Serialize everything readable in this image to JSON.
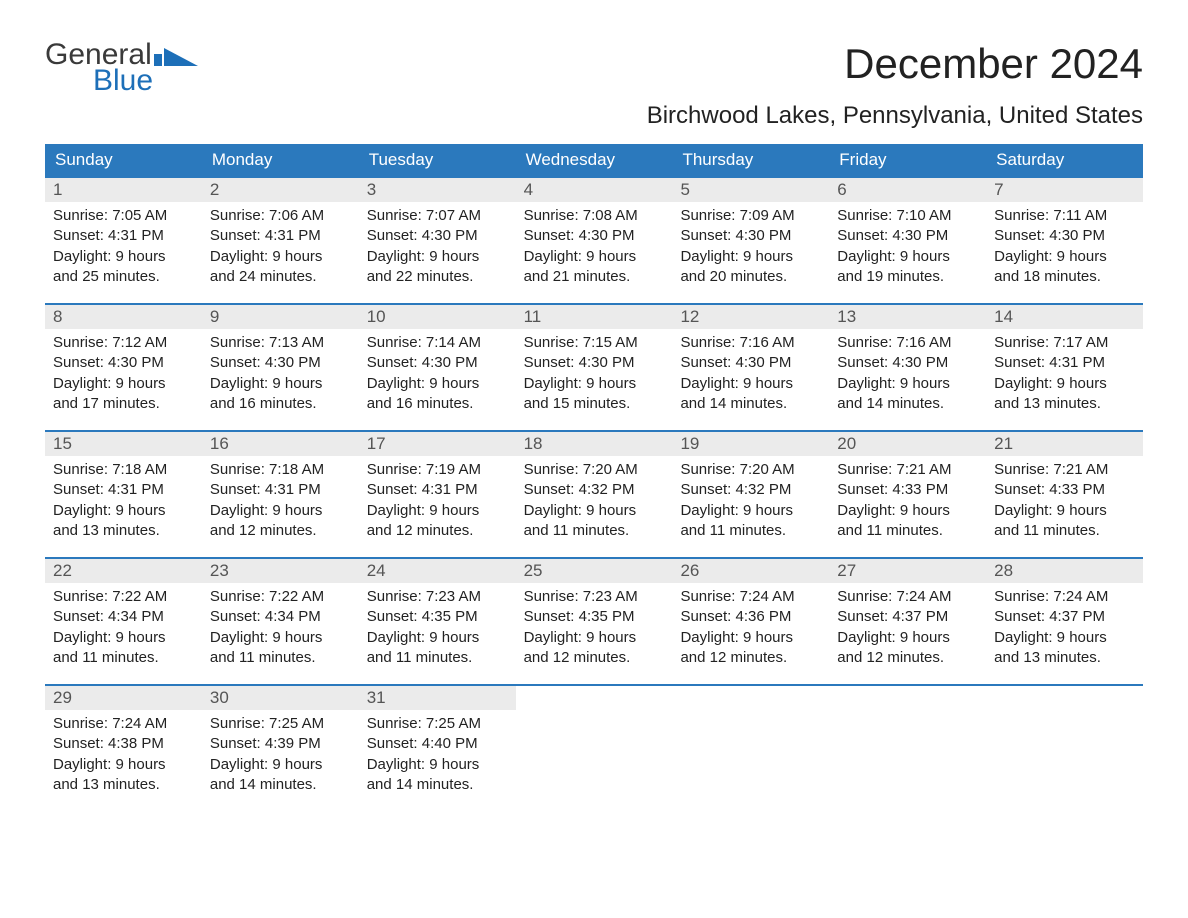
{
  "logo": {
    "top": "General",
    "bottom": "Blue"
  },
  "title": "December 2024",
  "location": "Birchwood Lakes, Pennsylvania, United States",
  "colors": {
    "header_bg": "#2b79bd",
    "header_text": "#ffffff",
    "daynum_bg": "#ebebeb",
    "week_border": "#2b79bd",
    "logo_blue": "#1d6fb8",
    "body_bg": "#ffffff"
  },
  "dayNames": [
    "Sunday",
    "Monday",
    "Tuesday",
    "Wednesday",
    "Thursday",
    "Friday",
    "Saturday"
  ],
  "weeks": [
    [
      {
        "num": "1",
        "sunrise": "Sunrise: 7:05 AM",
        "sunset": "Sunset: 4:31 PM",
        "daylight1": "Daylight: 9 hours",
        "daylight2": "and 25 minutes."
      },
      {
        "num": "2",
        "sunrise": "Sunrise: 7:06 AM",
        "sunset": "Sunset: 4:31 PM",
        "daylight1": "Daylight: 9 hours",
        "daylight2": "and 24 minutes."
      },
      {
        "num": "3",
        "sunrise": "Sunrise: 7:07 AM",
        "sunset": "Sunset: 4:30 PM",
        "daylight1": "Daylight: 9 hours",
        "daylight2": "and 22 minutes."
      },
      {
        "num": "4",
        "sunrise": "Sunrise: 7:08 AM",
        "sunset": "Sunset: 4:30 PM",
        "daylight1": "Daylight: 9 hours",
        "daylight2": "and 21 minutes."
      },
      {
        "num": "5",
        "sunrise": "Sunrise: 7:09 AM",
        "sunset": "Sunset: 4:30 PM",
        "daylight1": "Daylight: 9 hours",
        "daylight2": "and 20 minutes."
      },
      {
        "num": "6",
        "sunrise": "Sunrise: 7:10 AM",
        "sunset": "Sunset: 4:30 PM",
        "daylight1": "Daylight: 9 hours",
        "daylight2": "and 19 minutes."
      },
      {
        "num": "7",
        "sunrise": "Sunrise: 7:11 AM",
        "sunset": "Sunset: 4:30 PM",
        "daylight1": "Daylight: 9 hours",
        "daylight2": "and 18 minutes."
      }
    ],
    [
      {
        "num": "8",
        "sunrise": "Sunrise: 7:12 AM",
        "sunset": "Sunset: 4:30 PM",
        "daylight1": "Daylight: 9 hours",
        "daylight2": "and 17 minutes."
      },
      {
        "num": "9",
        "sunrise": "Sunrise: 7:13 AM",
        "sunset": "Sunset: 4:30 PM",
        "daylight1": "Daylight: 9 hours",
        "daylight2": "and 16 minutes."
      },
      {
        "num": "10",
        "sunrise": "Sunrise: 7:14 AM",
        "sunset": "Sunset: 4:30 PM",
        "daylight1": "Daylight: 9 hours",
        "daylight2": "and 16 minutes."
      },
      {
        "num": "11",
        "sunrise": "Sunrise: 7:15 AM",
        "sunset": "Sunset: 4:30 PM",
        "daylight1": "Daylight: 9 hours",
        "daylight2": "and 15 minutes."
      },
      {
        "num": "12",
        "sunrise": "Sunrise: 7:16 AM",
        "sunset": "Sunset: 4:30 PM",
        "daylight1": "Daylight: 9 hours",
        "daylight2": "and 14 minutes."
      },
      {
        "num": "13",
        "sunrise": "Sunrise: 7:16 AM",
        "sunset": "Sunset: 4:30 PM",
        "daylight1": "Daylight: 9 hours",
        "daylight2": "and 14 minutes."
      },
      {
        "num": "14",
        "sunrise": "Sunrise: 7:17 AM",
        "sunset": "Sunset: 4:31 PM",
        "daylight1": "Daylight: 9 hours",
        "daylight2": "and 13 minutes."
      }
    ],
    [
      {
        "num": "15",
        "sunrise": "Sunrise: 7:18 AM",
        "sunset": "Sunset: 4:31 PM",
        "daylight1": "Daylight: 9 hours",
        "daylight2": "and 13 minutes."
      },
      {
        "num": "16",
        "sunrise": "Sunrise: 7:18 AM",
        "sunset": "Sunset: 4:31 PM",
        "daylight1": "Daylight: 9 hours",
        "daylight2": "and 12 minutes."
      },
      {
        "num": "17",
        "sunrise": "Sunrise: 7:19 AM",
        "sunset": "Sunset: 4:31 PM",
        "daylight1": "Daylight: 9 hours",
        "daylight2": "and 12 minutes."
      },
      {
        "num": "18",
        "sunrise": "Sunrise: 7:20 AM",
        "sunset": "Sunset: 4:32 PM",
        "daylight1": "Daylight: 9 hours",
        "daylight2": "and 11 minutes."
      },
      {
        "num": "19",
        "sunrise": "Sunrise: 7:20 AM",
        "sunset": "Sunset: 4:32 PM",
        "daylight1": "Daylight: 9 hours",
        "daylight2": "and 11 minutes."
      },
      {
        "num": "20",
        "sunrise": "Sunrise: 7:21 AM",
        "sunset": "Sunset: 4:33 PM",
        "daylight1": "Daylight: 9 hours",
        "daylight2": "and 11 minutes."
      },
      {
        "num": "21",
        "sunrise": "Sunrise: 7:21 AM",
        "sunset": "Sunset: 4:33 PM",
        "daylight1": "Daylight: 9 hours",
        "daylight2": "and 11 minutes."
      }
    ],
    [
      {
        "num": "22",
        "sunrise": "Sunrise: 7:22 AM",
        "sunset": "Sunset: 4:34 PM",
        "daylight1": "Daylight: 9 hours",
        "daylight2": "and 11 minutes."
      },
      {
        "num": "23",
        "sunrise": "Sunrise: 7:22 AM",
        "sunset": "Sunset: 4:34 PM",
        "daylight1": "Daylight: 9 hours",
        "daylight2": "and 11 minutes."
      },
      {
        "num": "24",
        "sunrise": "Sunrise: 7:23 AM",
        "sunset": "Sunset: 4:35 PM",
        "daylight1": "Daylight: 9 hours",
        "daylight2": "and 11 minutes."
      },
      {
        "num": "25",
        "sunrise": "Sunrise: 7:23 AM",
        "sunset": "Sunset: 4:35 PM",
        "daylight1": "Daylight: 9 hours",
        "daylight2": "and 12 minutes."
      },
      {
        "num": "26",
        "sunrise": "Sunrise: 7:24 AM",
        "sunset": "Sunset: 4:36 PM",
        "daylight1": "Daylight: 9 hours",
        "daylight2": "and 12 minutes."
      },
      {
        "num": "27",
        "sunrise": "Sunrise: 7:24 AM",
        "sunset": "Sunset: 4:37 PM",
        "daylight1": "Daylight: 9 hours",
        "daylight2": "and 12 minutes."
      },
      {
        "num": "28",
        "sunrise": "Sunrise: 7:24 AM",
        "sunset": "Sunset: 4:37 PM",
        "daylight1": "Daylight: 9 hours",
        "daylight2": "and 13 minutes."
      }
    ],
    [
      {
        "num": "29",
        "sunrise": "Sunrise: 7:24 AM",
        "sunset": "Sunset: 4:38 PM",
        "daylight1": "Daylight: 9 hours",
        "daylight2": "and 13 minutes."
      },
      {
        "num": "30",
        "sunrise": "Sunrise: 7:25 AM",
        "sunset": "Sunset: 4:39 PM",
        "daylight1": "Daylight: 9 hours",
        "daylight2": "and 14 minutes."
      },
      {
        "num": "31",
        "sunrise": "Sunrise: 7:25 AM",
        "sunset": "Sunset: 4:40 PM",
        "daylight1": "Daylight: 9 hours",
        "daylight2": "and 14 minutes."
      },
      {
        "empty": true
      },
      {
        "empty": true
      },
      {
        "empty": true
      },
      {
        "empty": true
      }
    ]
  ]
}
